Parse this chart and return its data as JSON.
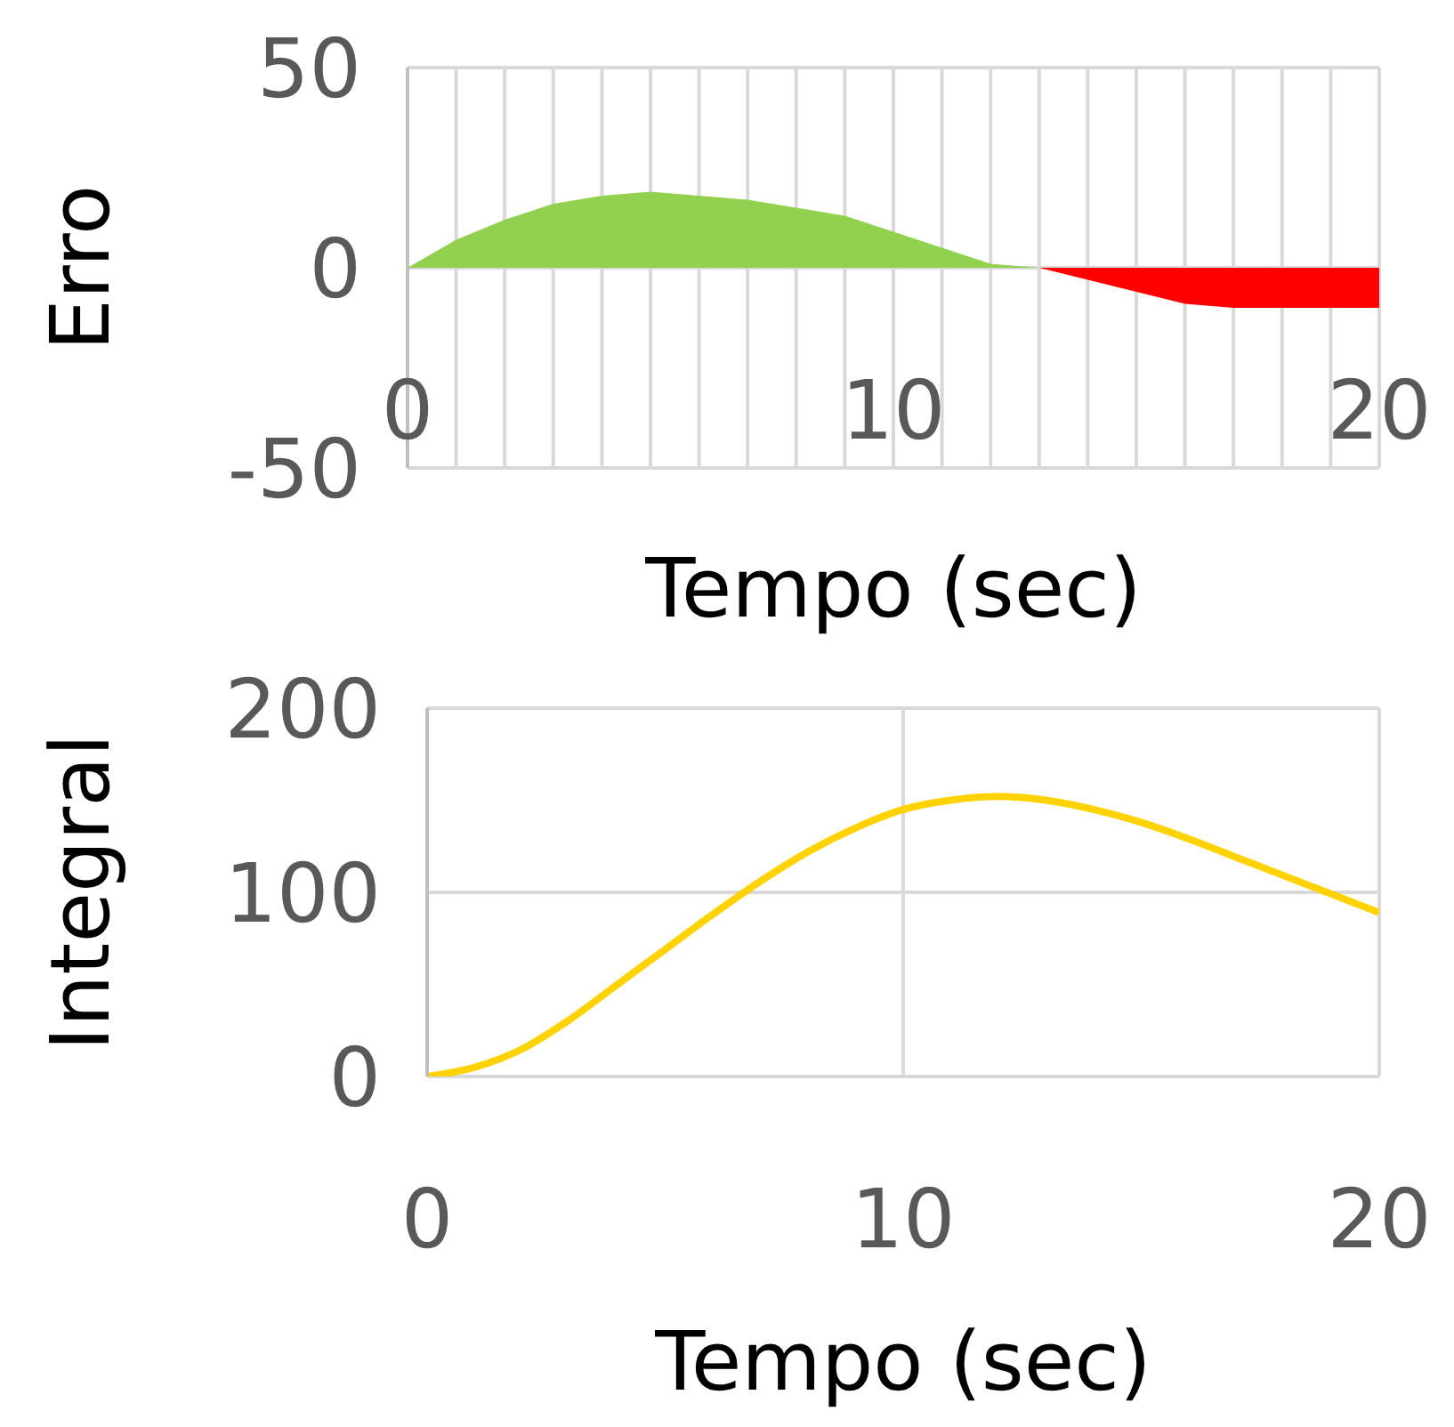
{
  "chart_data": [
    {
      "type": "area",
      "xlabel": "Tempo (sec)",
      "ylabel": "Erro",
      "x": [
        0,
        1,
        2,
        3,
        4,
        5,
        6,
        7,
        8,
        9,
        10,
        11,
        12,
        13,
        14,
        15,
        16,
        17,
        18,
        19,
        20
      ],
      "series": [
        {
          "color": "#92d050",
          "values": [
            0,
            7,
            12,
            16,
            18,
            19,
            18,
            17,
            15,
            13,
            9,
            5,
            1,
            0,
            0,
            0,
            0,
            0,
            0,
            0,
            0
          ]
        },
        {
          "color": "#ff0000",
          "values": [
            0,
            0,
            0,
            0,
            0,
            0,
            0,
            0,
            0,
            0,
            0,
            0,
            0,
            0,
            -3,
            -6,
            -9,
            -10,
            -10,
            -10,
            -10
          ]
        }
      ],
      "xlim": [
        0,
        20
      ],
      "xticks": [
        0,
        {
          "value": 1,
          "label": null
        },
        {
          "value": 2,
          "label": null
        },
        {
          "value": 3,
          "label": null
        },
        {
          "value": 4,
          "label": null
        },
        {
          "value": 5,
          "label": null
        },
        {
          "value": 6,
          "label": null
        },
        {
          "value": 7,
          "label": null
        },
        {
          "value": 8,
          "label": null
        },
        {
          "value": 9,
          "label": null
        },
        10,
        {
          "value": 11,
          "label": null
        },
        {
          "value": 12,
          "label": null
        },
        {
          "value": 13,
          "label": null
        },
        {
          "value": 14,
          "label": null
        },
        {
          "value": 15,
          "label": null
        },
        {
          "value": 16,
          "label": null
        },
        {
          "value": 17,
          "label": null
        },
        {
          "value": 18,
          "label": null
        },
        {
          "value": 19,
          "label": null
        },
        20
      ],
      "ylim": [
        -50,
        50
      ],
      "yticks": [
        -50,
        0,
        50
      ],
      "grid": true
    },
    {
      "type": "line",
      "xlabel": "Tempo (sec)",
      "ylabel": "Integral",
      "x": [
        0,
        1,
        2,
        3,
        4,
        5,
        6,
        7,
        8,
        9,
        10,
        11,
        12,
        13,
        14,
        15,
        16,
        17,
        18,
        19,
        20
      ],
      "series": [
        {
          "color": "#ffd200",
          "values": [
            0,
            5,
            15,
            31,
            50,
            69,
            88,
            106,
            122,
            135,
            145,
            150,
            152,
            150,
            145,
            138,
            129,
            119,
            109,
            99,
            89
          ]
        }
      ],
      "xlim": [
        0,
        20
      ],
      "xticks": [
        0,
        10,
        20
      ],
      "ylim": [
        0,
        200
      ],
      "yticks": [
        0,
        100,
        200
      ],
      "grid": true,
      "marker": "none"
    }
  ]
}
